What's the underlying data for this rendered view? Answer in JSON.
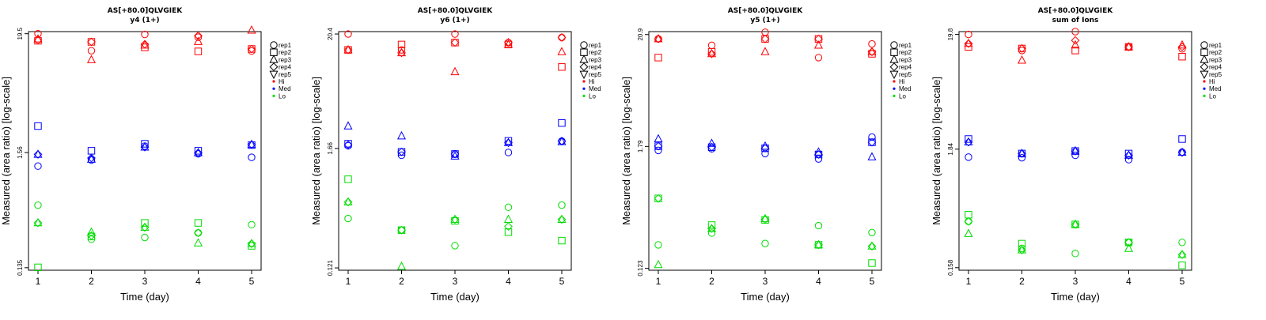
{
  "chart_data": [
    {
      "type": "scatter",
      "title": "AS[+80.0]QLVGIEK",
      "subtitle": "y4 (1+)",
      "xlabel": "Time (day)",
      "ylabel": "Measured (area ratio) [log-scale]",
      "x_ticks": [
        "1",
        "2",
        "3",
        "4",
        "5"
      ],
      "y_ticks": [
        {
          "label": "0.135",
          "value": 0.135
        },
        {
          "label": "1.56",
          "value": 1.56
        },
        {
          "label": "19.5",
          "value": 19.5
        }
      ],
      "ylim": [
        0.128,
        20.4
      ],
      "legend_position": "right",
      "legend": [
        {
          "label": "rep1",
          "symbol": "circle",
          "color": "#000000"
        },
        {
          "label": "rep2",
          "symbol": "square",
          "color": "#000000"
        },
        {
          "label": "rep3",
          "symbol": "triangle-up",
          "color": "#000000"
        },
        {
          "label": "rep4",
          "symbol": "diamond",
          "color": "#000000"
        },
        {
          "label": "rep5",
          "symbol": "triangle-down",
          "color": "#000000"
        },
        {
          "label": "Hi",
          "symbol": "dot",
          "color": "#ff0000"
        },
        {
          "label": "Med",
          "symbol": "dot",
          "color": "#0000ff"
        },
        {
          "label": "Lo",
          "symbol": "dot",
          "color": "#00dd00"
        }
      ],
      "series": [
        {
          "level": "Hi",
          "rep": "rep1",
          "values": [
            19.5,
            13.6,
            19.2,
            18.1,
            13.5
          ]
        },
        {
          "level": "Hi",
          "rep": "rep2",
          "values": [
            16.8,
            16.4,
            14.6,
            13.4,
            14.1
          ]
        },
        {
          "level": "Hi",
          "rep": "rep3",
          "values": [
            17.4,
            11.2,
            15.3,
            16.5,
            21.0
          ]
        },
        {
          "level": "Hi",
          "rep": "rep4",
          "values": [
            17.0,
            16.4,
            15.6,
            18.7,
            14.1
          ]
        },
        {
          "level": "Med",
          "rep": "rep1",
          "values": [
            1.17,
            1.33,
            1.79,
            1.52,
            1.41
          ]
        },
        {
          "level": "Med",
          "rep": "rep2",
          "values": [
            2.74,
            1.62,
            1.88,
            1.62,
            1.83
          ]
        },
        {
          "level": "Med",
          "rep": "rep3",
          "values": [
            1.5,
            1.35,
            1.75,
            1.55,
            1.85
          ]
        },
        {
          "level": "Med",
          "rep": "rep4",
          "values": [
            1.5,
            1.39,
            1.75,
            1.55,
            1.85
          ]
        },
        {
          "level": "Lo",
          "rep": "rep1",
          "values": [
            0.51,
            0.247,
            0.257,
            0.283,
            0.337
          ]
        },
        {
          "level": "Lo",
          "rep": "rep2",
          "values": [
            0.136,
            0.262,
            0.35,
            0.35,
            0.215
          ]
        },
        {
          "level": "Lo",
          "rep": "rep3",
          "values": [
            0.35,
            0.287,
            0.318,
            0.228,
            0.225
          ]
        },
        {
          "level": "Lo",
          "rep": "rep4",
          "values": [
            0.35,
            0.267,
            0.318,
            0.283,
            0.225
          ]
        }
      ]
    },
    {
      "type": "scatter",
      "title": "AS[+80.0]QLVGIEK",
      "subtitle": "y6 (1+)",
      "xlabel": "Time (day)",
      "ylabel": "Measured (area ratio) [log-scale]",
      "x_ticks": [
        "1",
        "2",
        "3",
        "4",
        "5"
      ],
      "y_ticks": [
        {
          "label": "0.121",
          "value": 0.121
        },
        {
          "label": "1.66",
          "value": 1.66
        },
        {
          "label": "20.4",
          "value": 20.4
        }
      ],
      "ylim": [
        0.115,
        21.5
      ],
      "legend_position": "right",
      "legend": [
        {
          "label": "rep1",
          "symbol": "circle",
          "color": "#000000"
        },
        {
          "label": "rep2",
          "symbol": "square",
          "color": "#000000"
        },
        {
          "label": "rep3",
          "symbol": "triangle-up",
          "color": "#000000"
        },
        {
          "label": "rep4",
          "symbol": "diamond",
          "color": "#000000"
        },
        {
          "label": "rep5",
          "symbol": "triangle-down",
          "color": "#000000"
        },
        {
          "label": "Hi",
          "symbol": "dot",
          "color": "#ff0000"
        },
        {
          "label": "Med",
          "symbol": "dot",
          "color": "#0000ff"
        },
        {
          "label": "Lo",
          "symbol": "dot",
          "color": "#00dd00"
        }
      ],
      "series": [
        {
          "level": "Hi",
          "rep": "rep1",
          "values": [
            20.4,
            14.4,
            20.4,
            16.9,
            18.9
          ]
        },
        {
          "level": "Hi",
          "rep": "rep2",
          "values": [
            14.4,
            16.2,
            16.9,
            16.2,
            9.9
          ]
        },
        {
          "level": "Hi",
          "rep": "rep3",
          "values": [
            14.4,
            13.5,
            8.9,
            16.2,
            13.8
          ]
        },
        {
          "level": "Hi",
          "rep": "rep4",
          "values": [
            14.4,
            13.5,
            16.9,
            17.0,
            18.9
          ]
        },
        {
          "level": "Med",
          "rep": "rep1",
          "values": [
            1.76,
            1.43,
            1.46,
            1.52,
            1.95
          ]
        },
        {
          "level": "Med",
          "rep": "rep2",
          "values": [
            1.84,
            1.54,
            1.47,
            1.96,
            2.9
          ]
        },
        {
          "level": "Med",
          "rep": "rep3",
          "values": [
            2.71,
            2.18,
            1.4,
            1.88,
            1.92
          ]
        },
        {
          "level": "Med",
          "rep": "rep4",
          "values": [
            1.8,
            1.54,
            1.47,
            1.88,
            1.95
          ]
        },
        {
          "level": "Lo",
          "rep": "rep1",
          "values": [
            0.357,
            0.277,
            0.197,
            0.457,
            0.479
          ]
        },
        {
          "level": "Lo",
          "rep": "rep2",
          "values": [
            0.845,
            0.277,
            0.339,
            0.265,
            0.22
          ]
        },
        {
          "level": "Lo",
          "rep": "rep3",
          "values": [
            0.513,
            0.125,
            0.35,
            0.35,
            0.35
          ]
        },
        {
          "level": "Lo",
          "rep": "rep4",
          "values": [
            0.513,
            0.277,
            0.35,
            0.3,
            0.35
          ]
        }
      ]
    },
    {
      "type": "scatter",
      "title": "AS[+80.0]QLVGIEK",
      "subtitle": "y5 (1+)",
      "xlabel": "Time (day)",
      "ylabel": "Measured (area ratio) [log-scale]",
      "x_ticks": [
        "1",
        "2",
        "3",
        "4",
        "5"
      ],
      "y_ticks": [
        {
          "label": "0.123",
          "value": 0.123
        },
        {
          "label": "1.79",
          "value": 1.79
        },
        {
          "label": "20.9",
          "value": 20.9
        }
      ],
      "ylim": [
        0.118,
        22.3
      ],
      "legend_position": "right",
      "legend": [
        {
          "label": "rep1",
          "symbol": "circle",
          "color": "#000000"
        },
        {
          "label": "rep2",
          "symbol": "square",
          "color": "#000000"
        },
        {
          "label": "rep3",
          "symbol": "triangle-up",
          "color": "#000000"
        },
        {
          "label": "rep4",
          "symbol": "diamond",
          "color": "#000000"
        },
        {
          "label": "rep5",
          "symbol": "triangle-down",
          "color": "#000000"
        },
        {
          "label": "Hi",
          "symbol": "dot",
          "color": "#ff0000"
        },
        {
          "label": "Med",
          "symbol": "dot",
          "color": "#0000ff"
        },
        {
          "label": "Lo",
          "symbol": "dot",
          "color": "#00dd00"
        }
      ],
      "series": [
        {
          "level": "Hi",
          "rep": "rep1",
          "values": [
            19.0,
            16.5,
            22.0,
            12.6,
            17.0
          ]
        },
        {
          "level": "Hi",
          "rep": "rep2",
          "values": [
            12.6,
            14.3,
            19.0,
            19.0,
            13.7
          ]
        },
        {
          "level": "Hi",
          "rep": "rep3",
          "values": [
            19.0,
            13.7,
            14.3,
            16.5,
            14.3
          ]
        },
        {
          "level": "Hi",
          "rep": "rep4",
          "values": [
            19.0,
            13.7,
            19.0,
            19.0,
            14.3
          ]
        },
        {
          "level": "Med",
          "rep": "rep1",
          "values": [
            1.64,
            1.7,
            1.53,
            1.36,
            2.2
          ]
        },
        {
          "level": "Med",
          "rep": "rep2",
          "values": [
            1.8,
            1.76,
            1.72,
            1.5,
            1.96
          ]
        },
        {
          "level": "Med",
          "rep": "rep3",
          "values": [
            2.11,
            1.91,
            1.8,
            1.58,
            1.42
          ]
        },
        {
          "level": "Med",
          "rep": "rep4",
          "values": [
            1.8,
            1.76,
            1.72,
            1.5,
            1.96
          ]
        },
        {
          "level": "Lo",
          "rep": "rep1",
          "values": [
            0.206,
            0.267,
            0.212,
            0.314,
            0.27
          ]
        },
        {
          "level": "Lo",
          "rep": "rep2",
          "values": [
            0.571,
            0.318,
            0.356,
            0.206,
            0.138
          ]
        },
        {
          "level": "Lo",
          "rep": "rep3",
          "values": [
            0.133,
            0.294,
            0.365,
            0.206,
            0.2
          ]
        },
        {
          "level": "Lo",
          "rep": "rep4",
          "values": [
            0.571,
            0.294,
            0.36,
            0.206,
            0.2
          ]
        }
      ]
    },
    {
      "type": "scatter",
      "title": "AS[+80.0]QLVGIEK",
      "subtitle": "sum of Ions",
      "xlabel": "Time (day)",
      "ylabel": "Measured (area ratio) [log-scale]",
      "x_ticks": [
        "1",
        "2",
        "3",
        "4",
        "5"
      ],
      "y_ticks": [
        {
          "label": "0.158",
          "value": 0.158
        },
        {
          "label": "1.84",
          "value": 1.84
        },
        {
          "label": "19.8",
          "value": 19.8
        }
      ],
      "ylim": [
        0.15,
        21.0
      ],
      "legend_position": "right",
      "legend": [
        {
          "label": "rep1",
          "symbol": "circle",
          "color": "#000000"
        },
        {
          "label": "rep2",
          "symbol": "square",
          "color": "#000000"
        },
        {
          "label": "rep3",
          "symbol": "triangle-up",
          "color": "#000000"
        },
        {
          "label": "rep4",
          "symbol": "diamond",
          "color": "#000000"
        },
        {
          "label": "rep5",
          "symbol": "triangle-down",
          "color": "#000000"
        },
        {
          "label": "Hi",
          "symbol": "dot",
          "color": "#ff0000"
        },
        {
          "label": "Med",
          "symbol": "dot",
          "color": "#0000ff"
        },
        {
          "label": "Lo",
          "symbol": "dot",
          "color": "#00dd00"
        }
      ],
      "series": [
        {
          "level": "Hi",
          "rep": "rep1",
          "values": [
            19.8,
            14.2,
            21.0,
            15.3,
            14.7
          ]
        },
        {
          "level": "Hi",
          "rep": "rep2",
          "values": [
            15.3,
            14.8,
            14.2,
            15.3,
            12.5
          ]
        },
        {
          "level": "Hi",
          "rep": "rep3",
          "values": [
            16.4,
            11.6,
            15.9,
            15.3,
            15.9
          ]
        },
        {
          "level": "Hi",
          "rep": "rep4",
          "values": [
            16.4,
            14.8,
            17.5,
            15.3,
            15.3
          ]
        },
        {
          "level": "Med",
          "rep": "rep1",
          "values": [
            1.56,
            1.54,
            1.62,
            1.48,
            1.73
          ]
        },
        {
          "level": "Med",
          "rep": "rep2",
          "values": [
            2.27,
            1.68,
            1.77,
            1.68,
            2.27
          ]
        },
        {
          "level": "Med",
          "rep": "rep3",
          "values": [
            2.13,
            1.68,
            1.77,
            1.62,
            1.72
          ]
        },
        {
          "level": "Med",
          "rep": "rep4",
          "values": [
            2.13,
            1.68,
            1.77,
            1.62,
            1.72
          ]
        },
        {
          "level": "Lo",
          "rep": "rep1",
          "values": [
            0.412,
            0.236,
            0.212,
            0.267,
            0.267
          ]
        },
        {
          "level": "Lo",
          "rep": "rep2",
          "values": [
            0.474,
            0.26,
            0.387,
            0.267,
            0.166
          ]
        },
        {
          "level": "Lo",
          "rep": "rep3",
          "values": [
            0.32,
            0.228,
            0.387,
            0.235,
            0.207
          ]
        },
        {
          "level": "Lo",
          "rep": "rep4",
          "values": [
            0.412,
            0.228,
            0.387,
            0.267,
            0.207
          ]
        }
      ]
    }
  ],
  "colors": {
    "Hi": "#ff0000",
    "Med": "#0000ff",
    "Lo": "#00dd00",
    "axis": "#000000"
  }
}
